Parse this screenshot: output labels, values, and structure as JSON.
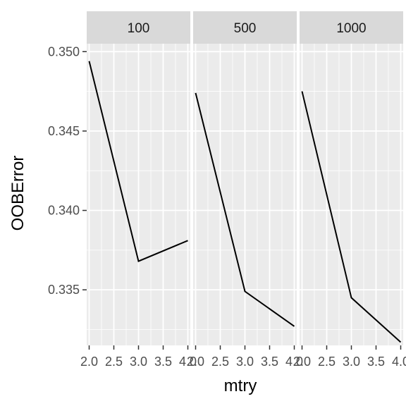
{
  "chart_data": {
    "type": "line",
    "xlabel": "mtry",
    "ylabel": "OOBError",
    "x": [
      2.0,
      3.0,
      4.0
    ],
    "xlim": [
      1.95,
      4.05
    ],
    "ylim": [
      0.3315,
      0.3505
    ],
    "x_ticks": [
      2.0,
      2.5,
      3.0,
      3.5,
      4.0
    ],
    "x_tick_labels": [
      "2.0",
      "2.5",
      "3.0",
      "3.5",
      "4.0"
    ],
    "y_ticks": [
      0.335,
      0.34,
      0.345,
      0.35
    ],
    "y_tick_labels": [
      "0.335",
      "0.340",
      "0.345",
      "0.350"
    ],
    "grid": true,
    "facets": [
      {
        "label": "100",
        "values": [
          0.3494,
          0.3368,
          0.3381
        ]
      },
      {
        "label": "500",
        "values": [
          0.3474,
          0.3349,
          0.3327
        ]
      },
      {
        "label": "1000",
        "values": [
          0.3475,
          0.3345,
          0.3317
        ]
      }
    ],
    "colors": {
      "panel_background": "#ebebeb",
      "strip_background": "#d9d9d9",
      "grid": "#ffffff",
      "line": "#000000"
    }
  }
}
